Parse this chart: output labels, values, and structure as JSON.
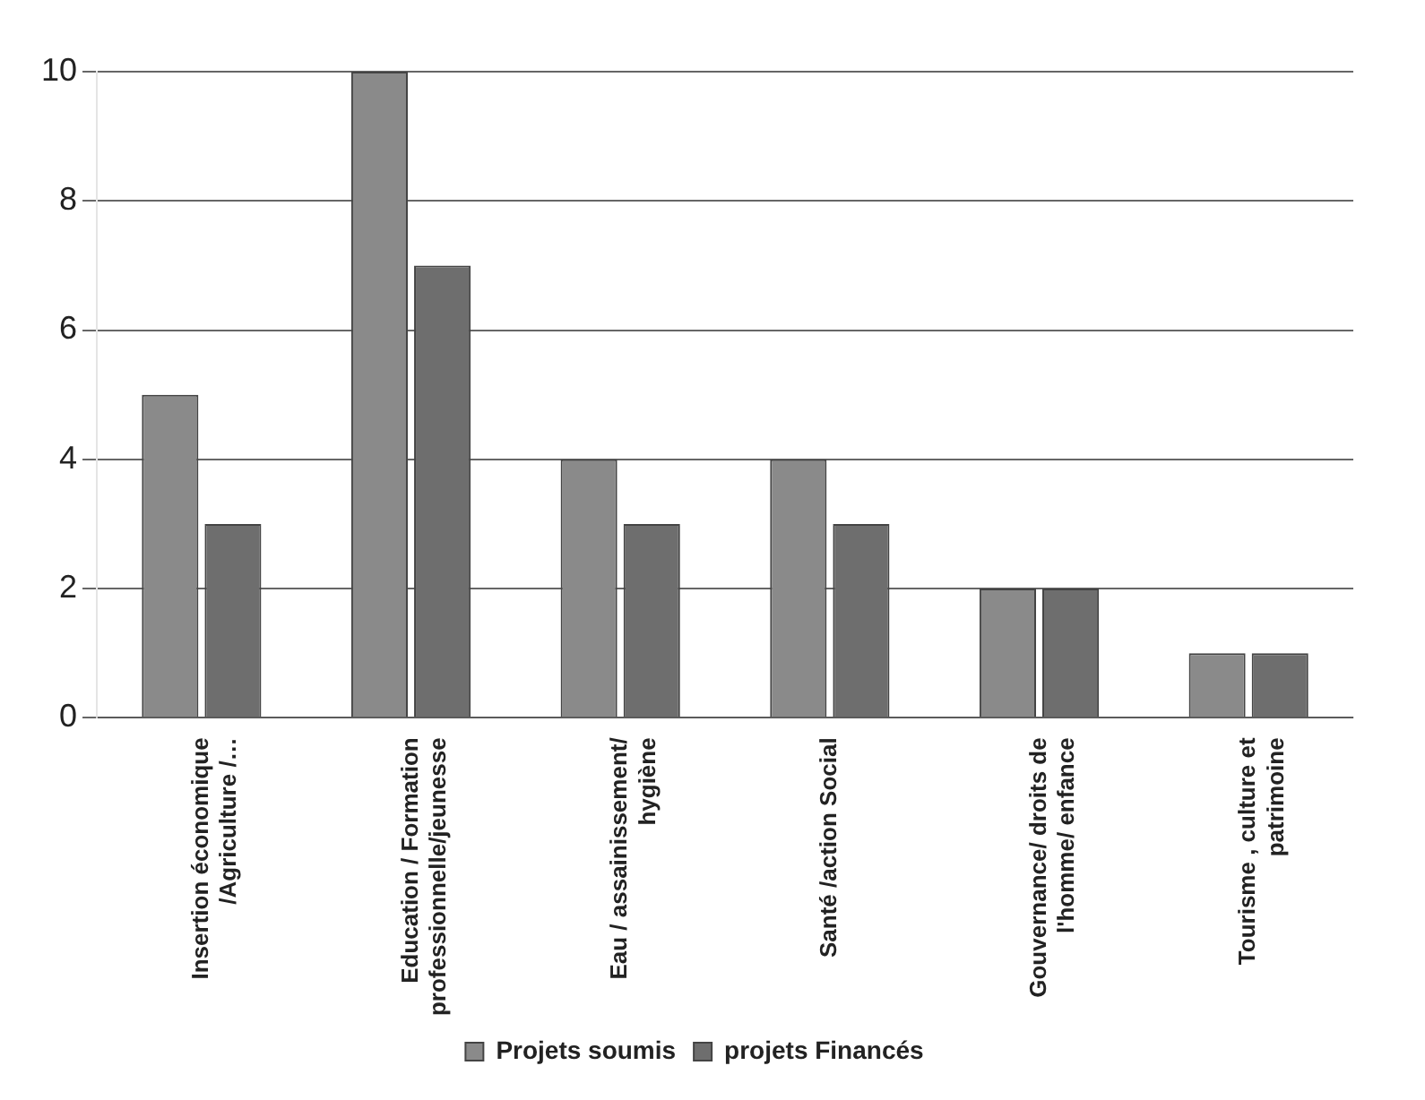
{
  "chart_data": {
    "type": "bar",
    "categories": [
      "Insertion économique /Agriculture /…",
      "Education / Formation professionnelle/jeunesse",
      "Eau / assainissement/ hygiène",
      "Santé /action Social",
      "Gouvernance/ droits de l'homme/ enfance",
      "Tourisme , culture et patrimoine"
    ],
    "series": [
      {
        "name": "Projets soumis",
        "color": "#8a8a8a",
        "values": [
          5,
          10,
          4,
          4,
          2,
          1
        ]
      },
      {
        "name": "projets Financés",
        "color": "#6e6e6e",
        "values": [
          3,
          7,
          3,
          3,
          2,
          1
        ]
      }
    ],
    "ylim": [
      0,
      10
    ],
    "yticks": [
      0,
      2,
      4,
      6,
      8,
      10
    ],
    "grid": "y",
    "legend": "bottom"
  }
}
